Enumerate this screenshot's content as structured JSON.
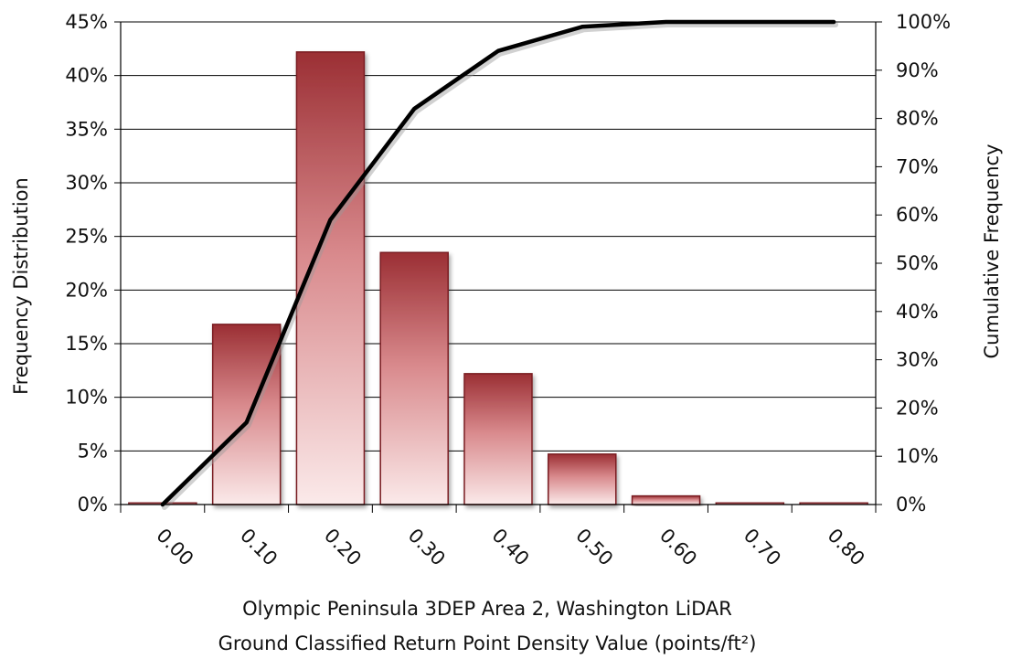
{
  "chart_data": {
    "type": "bar",
    "title": "",
    "categories": [
      "0.00",
      "0.10",
      "0.20",
      "0.30",
      "0.40",
      "0.50",
      "0.60",
      "0.70",
      "0.80"
    ],
    "series": [
      {
        "name": "",
        "type": "bar",
        "axis": "left",
        "values": [
          0.1,
          16.8,
          42.2,
          23.5,
          12.2,
          4.7,
          0.8,
          0.1,
          0.1
        ]
      },
      {
        "name": "",
        "type": "line",
        "axis": "right",
        "x": [
          0.0,
          0.1,
          0.2,
          0.3,
          0.4,
          0.5,
          0.6,
          0.7,
          0.8
        ],
        "values": [
          0,
          17,
          59,
          82,
          94,
          99,
          100,
          100,
          100
        ]
      }
    ],
    "y_left": {
      "label": "Frequency Distribution",
      "ylim": [
        0,
        45
      ],
      "ticks": [
        "0%",
        "5%",
        "10%",
        "15%",
        "20%",
        "25%",
        "30%",
        "35%",
        "40%",
        "45%"
      ]
    },
    "y_right": {
      "label": "Cumulative Frequency",
      "ylim": [
        0,
        100
      ],
      "ticks": [
        "0%",
        "10%",
        "20%",
        "30%",
        "40%",
        "50%",
        "60%",
        "70%",
        "80%",
        "90%",
        "100%"
      ]
    },
    "xlabel_line1": "Olympic Peninsula 3DEP Area 2, Washington LiDAR",
    "xlabel_line2": "Ground Classified Return Point Density Value (points/ft²)",
    "grid": true,
    "legend": "none",
    "colors": {
      "bar_top": "#9b2f34",
      "bar_bottom": "#fbeaea",
      "bar_edge": "#7a1e22",
      "line": "#000000",
      "grid": "#000000"
    }
  }
}
